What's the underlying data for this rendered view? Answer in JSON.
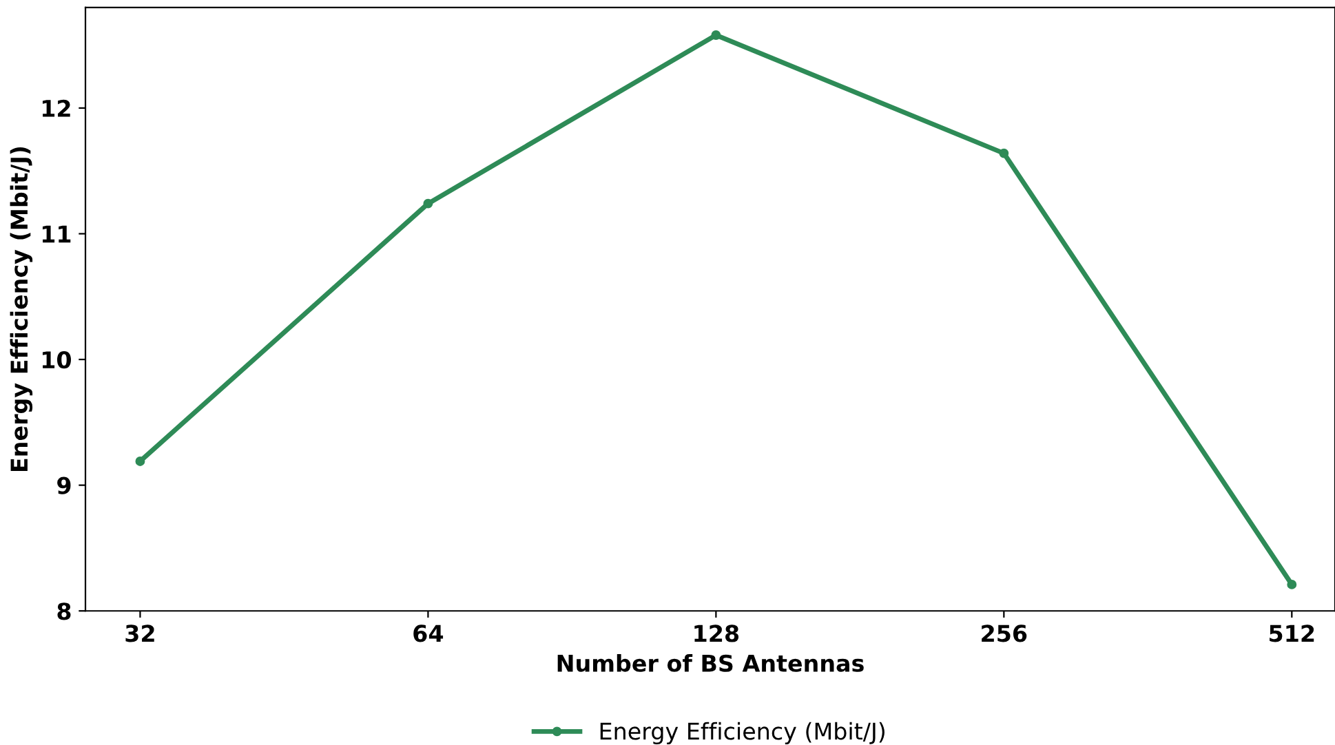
{
  "chart_data": {
    "type": "line",
    "xlabel": "Number of BS Antennas",
    "ylabel": "Energy Efficiency (Mbit/J)",
    "categories": [
      "32",
      "64",
      "128",
      "256",
      "512"
    ],
    "series": [
      {
        "name": "Energy Efficiency (Mbit/J)",
        "color": "#2e8b57",
        "values": [
          9.19,
          11.24,
          12.58,
          11.64,
          8.21
        ]
      }
    ],
    "ylim": [
      8,
      12.8
    ],
    "yticks": [
      8,
      9,
      10,
      11,
      12
    ],
    "grid": false,
    "legend": "bottom",
    "marker": "circle",
    "line_style": "solid"
  }
}
